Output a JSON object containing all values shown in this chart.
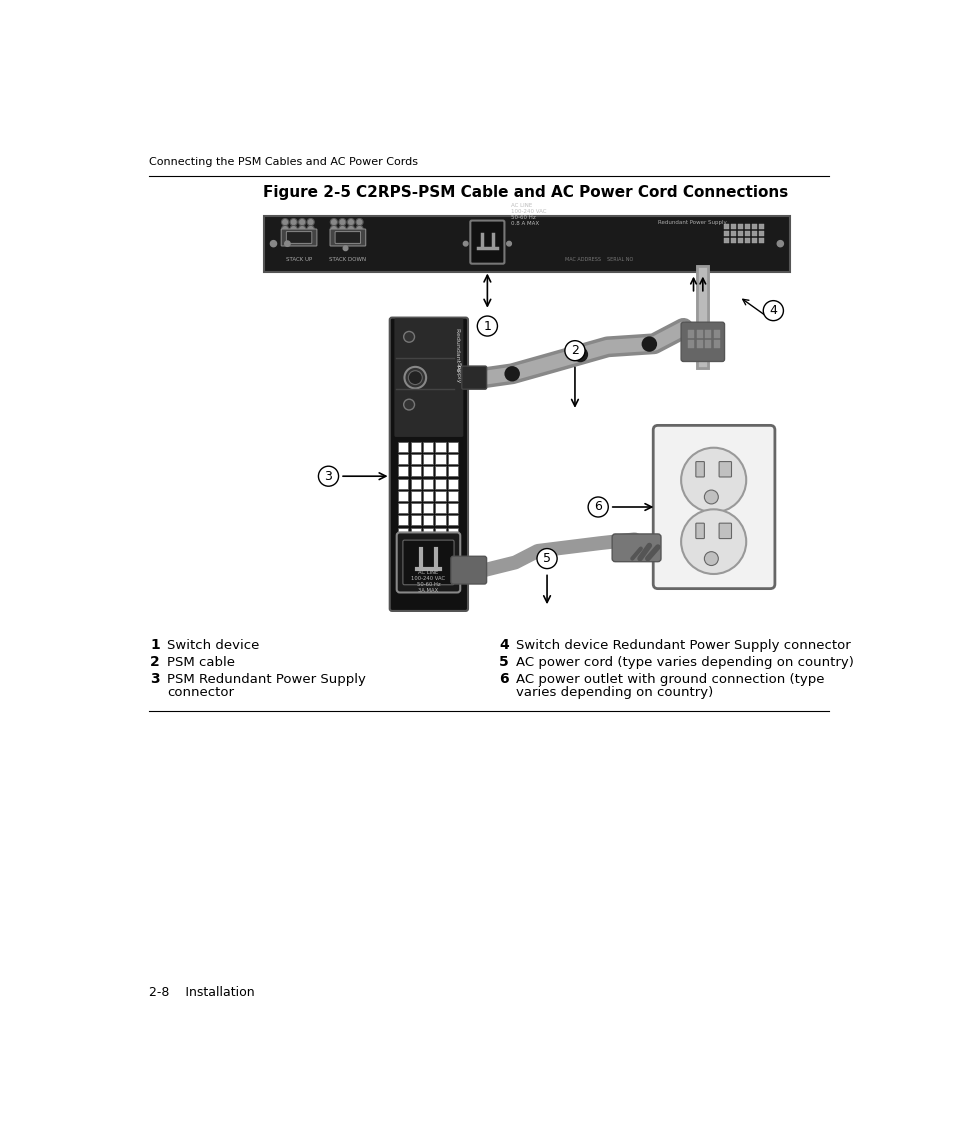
{
  "page_header": "Connecting the PSM Cables and AC Power Cords",
  "figure_label": "Figure 2-5",
  "figure_title": "    C2RPS-PSM Cable and AC Power Cord Connections",
  "footer_text": "2-8    Installation",
  "bg_color": "#ffffff"
}
